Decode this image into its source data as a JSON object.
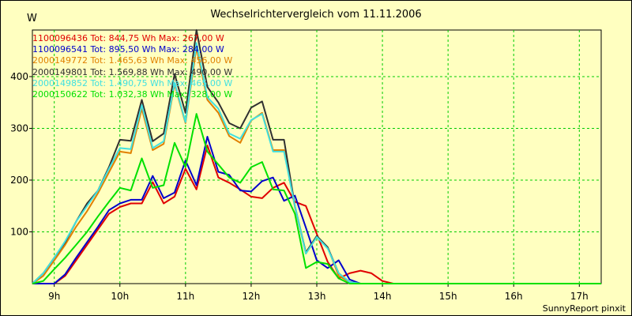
{
  "chart_data": {
    "type": "line",
    "title": "Wechselrichtervergleich vom 11.11.2006",
    "ylabel": "W",
    "credit": "SunnyReport pinxit",
    "x_ticks": [
      "9h",
      "10h",
      "11h",
      "12h",
      "13h",
      "14h",
      "15h",
      "16h",
      "17h"
    ],
    "y_ticks": [
      "100",
      "200",
      "300",
      "400"
    ],
    "ylim": [
      0,
      490
    ],
    "xlim": [
      "08:40",
      "17:20"
    ],
    "grid": true,
    "legend_position": "top-left",
    "x": [
      "08:40",
      "08:50",
      "09:00",
      "09:10",
      "09:20",
      "09:30",
      "09:40",
      "09:50",
      "10:00",
      "10:10",
      "10:20",
      "10:30",
      "10:40",
      "10:50",
      "11:00",
      "11:10",
      "11:20",
      "11:30",
      "11:40",
      "11:50",
      "12:00",
      "12:10",
      "12:20",
      "12:30",
      "12:40",
      "12:50",
      "13:00",
      "13:10",
      "13:20",
      "13:30",
      "13:40",
      "13:50",
      "14:00",
      "14:10",
      "14:20",
      "14:30",
      "14:40",
      "14:50",
      "15:00",
      "15:10",
      "15:20",
      "17:20"
    ],
    "series": [
      {
        "name": "1100096436",
        "legend": "1100096436 Tot: 844,75 Wh Max: 267,00 W",
        "color": "#e00000",
        "values": [
          0,
          0,
          0,
          15,
          45,
          75,
          105,
          135,
          148,
          155,
          155,
          196,
          155,
          168,
          222,
          182,
          267,
          205,
          195,
          182,
          168,
          165,
          185,
          195,
          158,
          150,
          96,
          42,
          10,
          20,
          25,
          20,
          5,
          0,
          0,
          0,
          0,
          0,
          0,
          0,
          0,
          0
        ]
      },
      {
        "name": "1100096541",
        "legend": "1100096541 Tot: 895,50 Wh Max: 284,00 W",
        "color": "#0000cc",
        "values": [
          0,
          0,
          0,
          18,
          50,
          80,
          110,
          142,
          155,
          162,
          162,
          208,
          165,
          176,
          238,
          190,
          284,
          216,
          210,
          180,
          178,
          198,
          205,
          160,
          170,
          108,
          45,
          30,
          45,
          8,
          0,
          0,
          0,
          0,
          0,
          0,
          0,
          0,
          0,
          0,
          0,
          0
        ]
      },
      {
        "name": "2000149772",
        "legend": "2000149772 Tot: 1.465,63 Wh Max: 456,00 W",
        "color": "#e08000",
        "values": [
          0,
          15,
          45,
          75,
          110,
          140,
          175,
          215,
          255,
          252,
          338,
          258,
          270,
          385,
          310,
          456,
          355,
          330,
          285,
          272,
          315,
          330,
          258,
          258,
          148,
          58,
          90,
          70,
          15,
          3,
          0,
          0,
          0,
          0,
          0,
          0,
          0,
          0,
          0,
          0,
          0,
          0
        ]
      },
      {
        "name": "2000149801",
        "legend": "2000149801 Tot: 1.569,88 Wh Max: 490,00 W",
        "color": "#303030",
        "values": [
          0,
          20,
          50,
          80,
          120,
          155,
          180,
          225,
          278,
          276,
          355,
          275,
          290,
          405,
          330,
          490,
          380,
          350,
          310,
          300,
          340,
          352,
          278,
          278,
          150,
          60,
          92,
          70,
          20,
          3,
          0,
          0,
          0,
          0,
          0,
          0,
          0,
          0,
          0,
          0,
          0,
          0
        ]
      },
      {
        "name": "2000149852",
        "legend": "2000149852 Tot: 1.490,75 Wh Max: 465,00 W",
        "color": "#40e0e0",
        "values": [
          0,
          20,
          50,
          82,
          120,
          150,
          180,
          222,
          262,
          260,
          345,
          262,
          275,
          388,
          312,
          465,
          360,
          338,
          290,
          280,
          316,
          328,
          255,
          255,
          150,
          58,
          90,
          68,
          20,
          3,
          0,
          0,
          0,
          0,
          0,
          0,
          0,
          0,
          0,
          0,
          0,
          0
        ]
      },
      {
        "name": "2000150622",
        "legend": "2000150622 Tot: 1.032,38 Wh Max: 328,00 W",
        "color": "#00e000",
        "values": [
          0,
          5,
          28,
          50,
          75,
          100,
          130,
          158,
          185,
          180,
          242,
          185,
          190,
          272,
          225,
          328,
          255,
          230,
          205,
          195,
          225,
          235,
          182,
          180,
          135,
          30,
          42,
          38,
          10,
          0,
          0,
          0,
          0,
          0,
          0,
          0,
          0,
          0,
          0,
          0,
          0,
          0
        ]
      }
    ]
  }
}
